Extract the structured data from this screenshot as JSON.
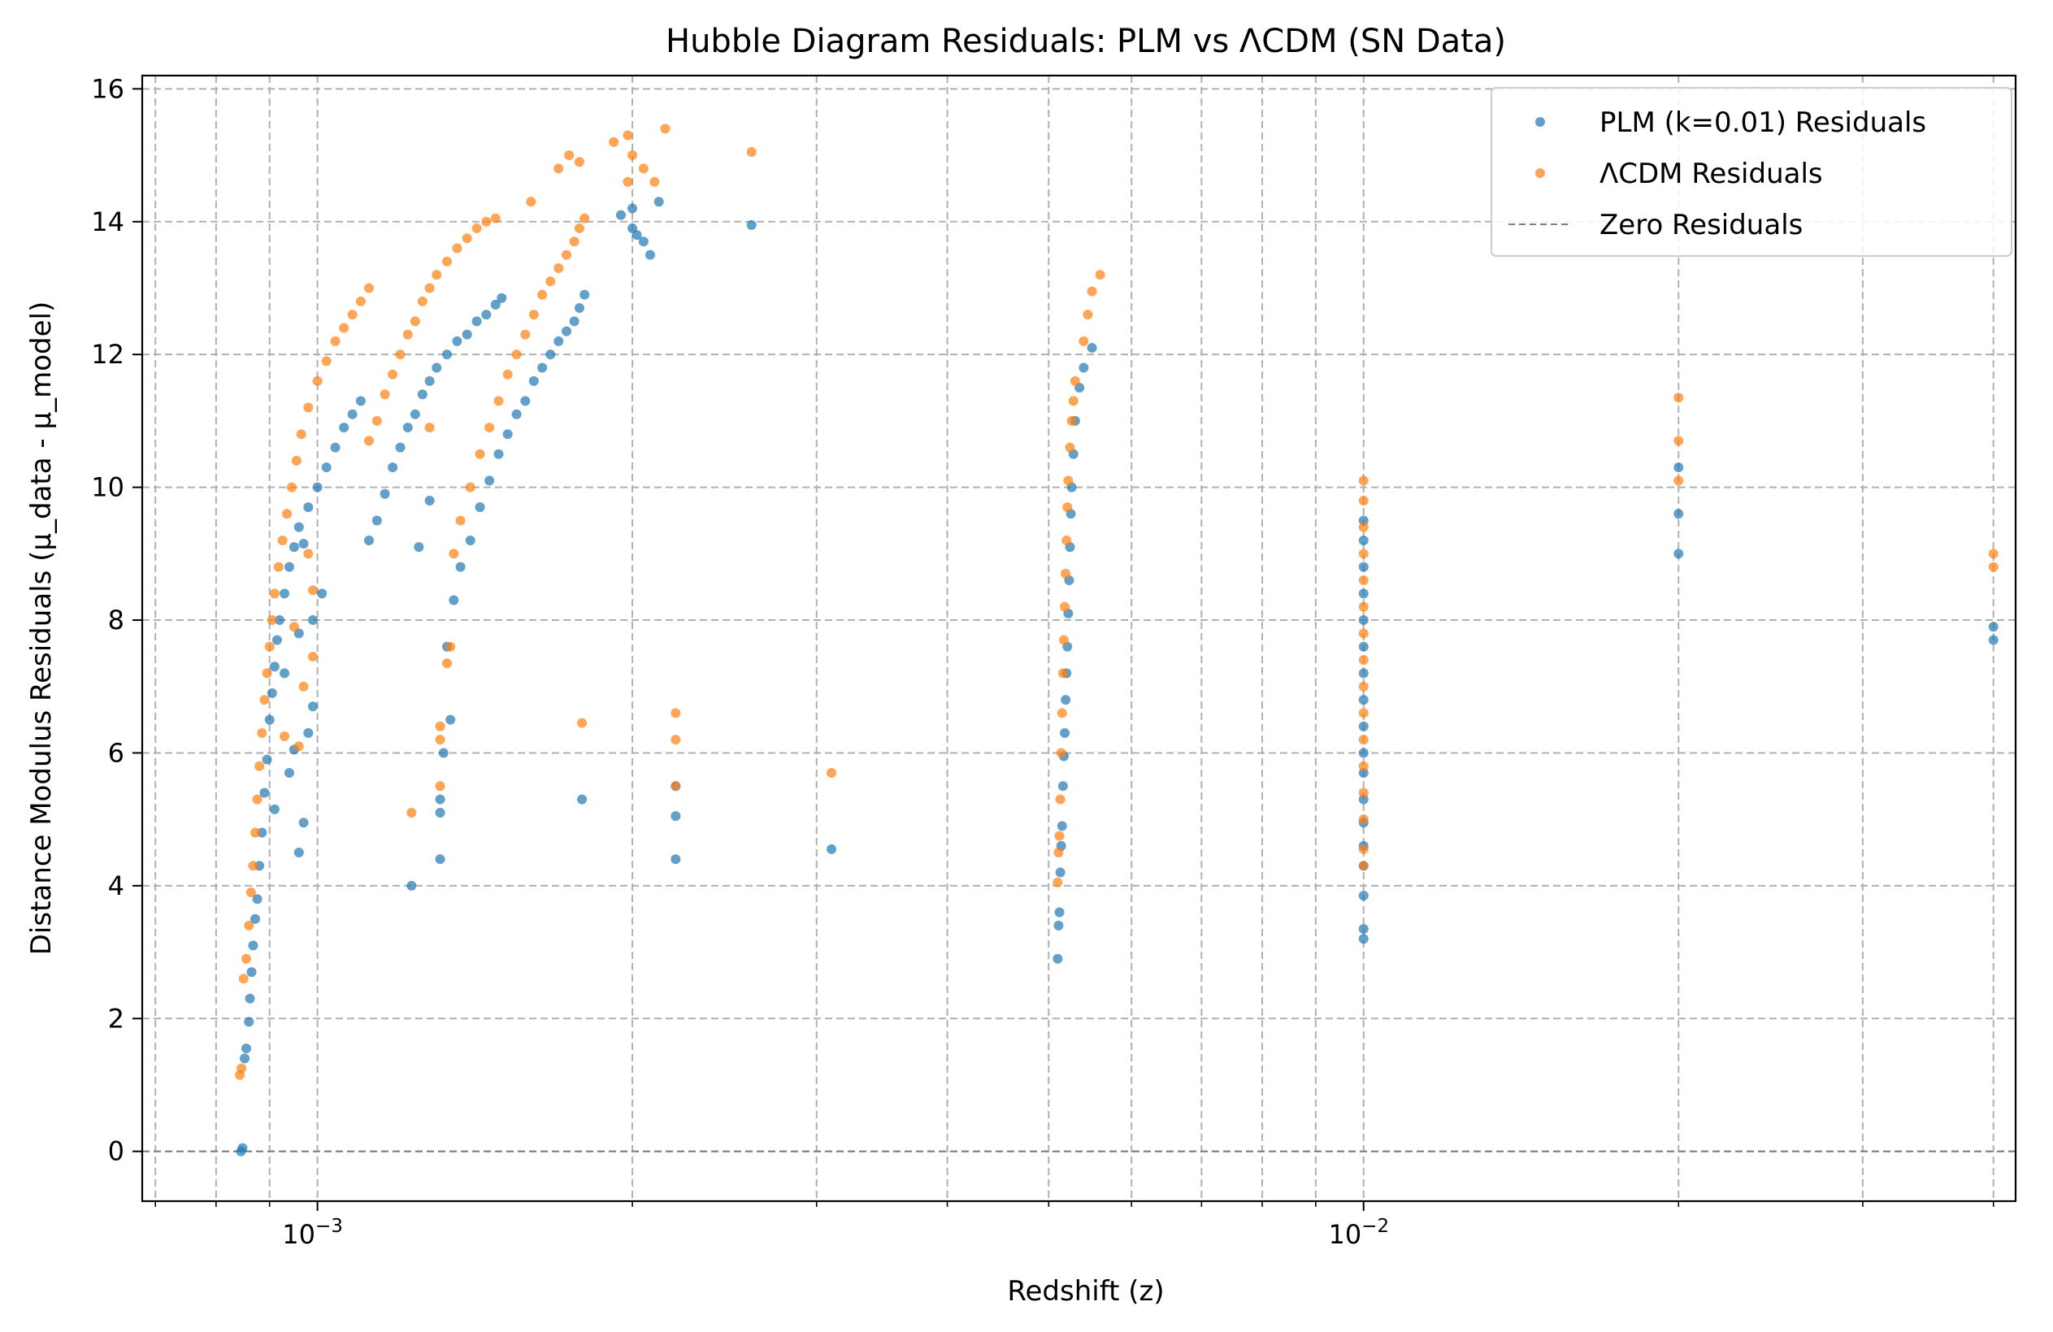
{
  "chart_data": {
    "type": "scatter",
    "title": "Hubble Diagram Residuals: PLM vs ΛCDM (SN Data)",
    "xlabel": "Redshift (z)",
    "ylabel": "Distance Modulus Residuals (μ_data - μ_model)",
    "xscale": "log",
    "xlim": [
      0.00068,
      0.042
    ],
    "ylim": [
      -0.75,
      16.2
    ],
    "x_ticks": [
      {
        "value": 0.001,
        "base": "10",
        "exp": "−3"
      },
      {
        "value": 0.01,
        "base": "10",
        "exp": "−2"
      }
    ],
    "y_ticks": [
      {
        "value": 0,
        "label": "0"
      },
      {
        "value": 2,
        "label": "2"
      },
      {
        "value": 4,
        "label": "4"
      },
      {
        "value": 6,
        "label": "6"
      },
      {
        "value": 8,
        "label": "8"
      },
      {
        "value": 10,
        "label": "10"
      },
      {
        "value": 12,
        "label": "12"
      },
      {
        "value": 14,
        "label": "14"
      },
      {
        "value": 16,
        "label": "16"
      }
    ],
    "grid": true,
    "legend_position": "top-right",
    "reference_line": {
      "y": 0,
      "name": "Zero Residuals",
      "color": "#7f7f7f",
      "style": "dashed"
    },
    "series": [
      {
        "name": "PLM (k=0.01) Residuals",
        "color": "#1f77b4",
        "points": [
          [
            0.000845,
            0.0
          ],
          [
            0.000848,
            0.05
          ],
          [
            0.000852,
            1.4
          ],
          [
            0.000855,
            1.55
          ],
          [
            0.00086,
            1.95
          ],
          [
            0.000862,
            2.3
          ],
          [
            0.000865,
            2.7
          ],
          [
            0.000868,
            3.1
          ],
          [
            0.000872,
            3.5
          ],
          [
            0.000876,
            3.8
          ],
          [
            0.00088,
            4.3
          ],
          [
            0.000885,
            4.8
          ],
          [
            0.00089,
            5.4
          ],
          [
            0.000895,
            5.9
          ],
          [
            0.0009,
            6.5
          ],
          [
            0.000905,
            6.9
          ],
          [
            0.00091,
            7.3
          ],
          [
            0.000915,
            7.7
          ],
          [
            0.00092,
            8.0
          ],
          [
            0.00093,
            8.4
          ],
          [
            0.00094,
            8.8
          ],
          [
            0.00095,
            9.1
          ],
          [
            0.00096,
            9.4
          ],
          [
            0.00098,
            9.7
          ],
          [
            0.001,
            10.0
          ],
          [
            0.00102,
            10.3
          ],
          [
            0.00104,
            10.6
          ],
          [
            0.00106,
            10.9
          ],
          [
            0.00108,
            11.1
          ],
          [
            0.0011,
            11.3
          ],
          [
            0.00091,
            5.15
          ],
          [
            0.00094,
            5.7
          ],
          [
            0.00096,
            4.5
          ],
          [
            0.00097,
            4.95
          ],
          [
            0.00095,
            6.05
          ],
          [
            0.00098,
            6.3
          ],
          [
            0.00099,
            6.7
          ],
          [
            0.00093,
            7.2
          ],
          [
            0.00096,
            7.8
          ],
          [
            0.00099,
            8.0
          ],
          [
            0.00101,
            8.4
          ],
          [
            0.00097,
            9.15
          ],
          [
            0.00112,
            9.2
          ],
          [
            0.00114,
            9.5
          ],
          [
            0.00116,
            9.9
          ],
          [
            0.00118,
            10.3
          ],
          [
            0.0012,
            10.6
          ],
          [
            0.00122,
            10.9
          ],
          [
            0.00124,
            11.1
          ],
          [
            0.00126,
            11.4
          ],
          [
            0.00128,
            11.6
          ],
          [
            0.0013,
            11.8
          ],
          [
            0.00133,
            12.0
          ],
          [
            0.00136,
            12.2
          ],
          [
            0.00139,
            12.3
          ],
          [
            0.00142,
            12.5
          ],
          [
            0.00145,
            12.6
          ],
          [
            0.00148,
            12.75
          ],
          [
            0.0015,
            12.85
          ],
          [
            0.00123,
            4.0
          ],
          [
            0.00125,
            9.1
          ],
          [
            0.00128,
            9.8
          ],
          [
            0.00131,
            4.4
          ],
          [
            0.00131,
            5.1
          ],
          [
            0.00131,
            5.3
          ],
          [
            0.00132,
            6.0
          ],
          [
            0.00134,
            6.5
          ],
          [
            0.00133,
            7.6
          ],
          [
            0.00135,
            8.3
          ],
          [
            0.00137,
            8.8
          ],
          [
            0.0014,
            9.2
          ],
          [
            0.00143,
            9.7
          ],
          [
            0.00146,
            10.1
          ],
          [
            0.00149,
            10.5
          ],
          [
            0.00152,
            10.8
          ],
          [
            0.00155,
            11.1
          ],
          [
            0.00158,
            11.3
          ],
          [
            0.00161,
            11.6
          ],
          [
            0.00164,
            11.8
          ],
          [
            0.00167,
            12.0
          ],
          [
            0.0017,
            12.2
          ],
          [
            0.00173,
            12.35
          ],
          [
            0.00176,
            12.5
          ],
          [
            0.00178,
            12.7
          ],
          [
            0.0018,
            12.9
          ],
          [
            0.00179,
            5.3
          ],
          [
            0.00195,
            14.1
          ],
          [
            0.002,
            13.9
          ],
          [
            0.00202,
            13.8
          ],
          [
            0.00205,
            13.7
          ],
          [
            0.00208,
            13.5
          ],
          [
            0.00212,
            14.3
          ],
          [
            0.002,
            14.2
          ],
          [
            0.0022,
            5.5
          ],
          [
            0.0022,
            5.05
          ],
          [
            0.0022,
            4.4
          ],
          [
            0.0026,
            13.95
          ],
          [
            0.0031,
            4.55
          ],
          [
            0.0051,
            2.9
          ],
          [
            0.00511,
            3.4
          ],
          [
            0.00512,
            3.6
          ],
          [
            0.00513,
            4.2
          ],
          [
            0.00514,
            4.6
          ],
          [
            0.00515,
            4.9
          ],
          [
            0.00516,
            5.5
          ],
          [
            0.00517,
            5.95
          ],
          [
            0.00518,
            6.3
          ],
          [
            0.00519,
            6.8
          ],
          [
            0.0052,
            7.2
          ],
          [
            0.00521,
            7.6
          ],
          [
            0.00522,
            8.1
          ],
          [
            0.00523,
            8.6
          ],
          [
            0.00524,
            9.1
          ],
          [
            0.00525,
            9.6
          ],
          [
            0.00526,
            10.0
          ],
          [
            0.00528,
            10.5
          ],
          [
            0.0053,
            11.0
          ],
          [
            0.00535,
            11.5
          ],
          [
            0.0054,
            11.8
          ],
          [
            0.0055,
            12.1
          ],
          [
            0.01,
            3.2
          ],
          [
            0.01,
            3.35
          ],
          [
            0.01,
            3.85
          ],
          [
            0.01,
            4.3
          ],
          [
            0.01,
            4.6
          ],
          [
            0.01,
            4.95
          ],
          [
            0.01,
            5.3
          ],
          [
            0.01,
            5.7
          ],
          [
            0.01,
            6.0
          ],
          [
            0.01,
            6.4
          ],
          [
            0.01,
            6.8
          ],
          [
            0.01,
            7.2
          ],
          [
            0.01,
            7.6
          ],
          [
            0.01,
            8.0
          ],
          [
            0.01,
            8.4
          ],
          [
            0.01,
            8.8
          ],
          [
            0.01,
            9.2
          ],
          [
            0.01,
            9.5
          ],
          [
            0.02,
            9.0
          ],
          [
            0.02,
            9.6
          ],
          [
            0.02,
            10.3
          ],
          [
            0.04,
            7.7
          ],
          [
            0.04,
            7.9
          ]
        ]
      },
      {
        "name": "ΛCDM Residuals",
        "color": "#ff7f0e",
        "points": [
          [
            0.000843,
            1.15
          ],
          [
            0.000846,
            1.25
          ],
          [
            0.00085,
            2.6
          ],
          [
            0.000855,
            2.9
          ],
          [
            0.00086,
            3.4
          ],
          [
            0.000864,
            3.9
          ],
          [
            0.000868,
            4.3
          ],
          [
            0.000872,
            4.8
          ],
          [
            0.000876,
            5.3
          ],
          [
            0.00088,
            5.8
          ],
          [
            0.000885,
            6.3
          ],
          [
            0.00089,
            6.8
          ],
          [
            0.000895,
            7.2
          ],
          [
            0.0009,
            7.6
          ],
          [
            0.000905,
            8.0
          ],
          [
            0.00091,
            8.4
          ],
          [
            0.000918,
            8.8
          ],
          [
            0.000926,
            9.2
          ],
          [
            0.000935,
            9.6
          ],
          [
            0.000945,
            10.0
          ],
          [
            0.000955,
            10.4
          ],
          [
            0.000965,
            10.8
          ],
          [
            0.00098,
            11.2
          ],
          [
            0.001,
            11.6
          ],
          [
            0.00102,
            11.9
          ],
          [
            0.00104,
            12.2
          ],
          [
            0.00106,
            12.4
          ],
          [
            0.00108,
            12.6
          ],
          [
            0.0011,
            12.8
          ],
          [
            0.00112,
            13.0
          ],
          [
            0.00096,
            6.1
          ],
          [
            0.00093,
            6.25
          ],
          [
            0.00097,
            7.0
          ],
          [
            0.00099,
            7.45
          ],
          [
            0.00095,
            7.9
          ],
          [
            0.00099,
            8.45
          ],
          [
            0.00098,
            9.0
          ],
          [
            0.00112,
            10.7
          ],
          [
            0.00114,
            11.0
          ],
          [
            0.00116,
            11.4
          ],
          [
            0.00118,
            11.7
          ],
          [
            0.0012,
            12.0
          ],
          [
            0.00122,
            12.3
          ],
          [
            0.00124,
            12.5
          ],
          [
            0.00126,
            12.8
          ],
          [
            0.00128,
            13.0
          ],
          [
            0.0013,
            13.2
          ],
          [
            0.00133,
            13.4
          ],
          [
            0.00136,
            13.6
          ],
          [
            0.00139,
            13.75
          ],
          [
            0.00142,
            13.9
          ],
          [
            0.00145,
            14.0
          ],
          [
            0.00148,
            14.05
          ],
          [
            0.00123,
            5.1
          ],
          [
            0.00128,
            10.9
          ],
          [
            0.00131,
            5.5
          ],
          [
            0.00131,
            6.2
          ],
          [
            0.00131,
            6.4
          ],
          [
            0.00133,
            7.35
          ],
          [
            0.00134,
            7.6
          ],
          [
            0.00135,
            9.0
          ],
          [
            0.00137,
            9.5
          ],
          [
            0.0014,
            10.0
          ],
          [
            0.00143,
            10.5
          ],
          [
            0.00146,
            10.9
          ],
          [
            0.00149,
            11.3
          ],
          [
            0.00152,
            11.7
          ],
          [
            0.00155,
            12.0
          ],
          [
            0.00158,
            12.3
          ],
          [
            0.00161,
            12.6
          ],
          [
            0.00164,
            12.9
          ],
          [
            0.00167,
            13.1
          ],
          [
            0.0017,
            13.3
          ],
          [
            0.00173,
            13.5
          ],
          [
            0.00176,
            13.7
          ],
          [
            0.00178,
            13.9
          ],
          [
            0.0018,
            14.05
          ],
          [
            0.00179,
            6.45
          ],
          [
            0.0016,
            14.3
          ],
          [
            0.0017,
            14.8
          ],
          [
            0.00174,
            15.0
          ],
          [
            0.00178,
            14.9
          ],
          [
            0.00192,
            15.2
          ],
          [
            0.00198,
            15.3
          ],
          [
            0.002,
            15.0
          ],
          [
            0.00205,
            14.8
          ],
          [
            0.0021,
            14.6
          ],
          [
            0.00198,
            14.6
          ],
          [
            0.00215,
            15.4
          ],
          [
            0.0022,
            6.6
          ],
          [
            0.0022,
            6.2
          ],
          [
            0.0022,
            5.5
          ],
          [
            0.0026,
            15.05
          ],
          [
            0.0031,
            5.7
          ],
          [
            0.0051,
            4.05
          ],
          [
            0.00511,
            4.5
          ],
          [
            0.00512,
            4.75
          ],
          [
            0.00513,
            5.3
          ],
          [
            0.00514,
            6.0
          ],
          [
            0.00515,
            6.6
          ],
          [
            0.00516,
            7.2
          ],
          [
            0.00517,
            7.7
          ],
          [
            0.00518,
            8.2
          ],
          [
            0.00519,
            8.7
          ],
          [
            0.0052,
            9.2
          ],
          [
            0.00521,
            9.7
          ],
          [
            0.00522,
            10.1
          ],
          [
            0.00524,
            10.6
          ],
          [
            0.00526,
            11.0
          ],
          [
            0.00528,
            11.3
          ],
          [
            0.0053,
            11.6
          ],
          [
            0.0054,
            12.2
          ],
          [
            0.00545,
            12.6
          ],
          [
            0.0055,
            12.95
          ],
          [
            0.0056,
            13.2
          ],
          [
            0.01,
            4.3
          ],
          [
            0.01,
            4.55
          ],
          [
            0.01,
            5.0
          ],
          [
            0.01,
            5.4
          ],
          [
            0.01,
            5.8
          ],
          [
            0.01,
            6.2
          ],
          [
            0.01,
            6.6
          ],
          [
            0.01,
            7.0
          ],
          [
            0.01,
            7.4
          ],
          [
            0.01,
            7.8
          ],
          [
            0.01,
            8.2
          ],
          [
            0.01,
            8.6
          ],
          [
            0.01,
            9.0
          ],
          [
            0.01,
            9.4
          ],
          [
            0.01,
            9.8
          ],
          [
            0.01,
            10.1
          ],
          [
            0.02,
            10.1
          ],
          [
            0.02,
            10.7
          ],
          [
            0.02,
            11.35
          ],
          [
            0.04,
            8.8
          ],
          [
            0.04,
            9.0
          ]
        ]
      }
    ]
  }
}
